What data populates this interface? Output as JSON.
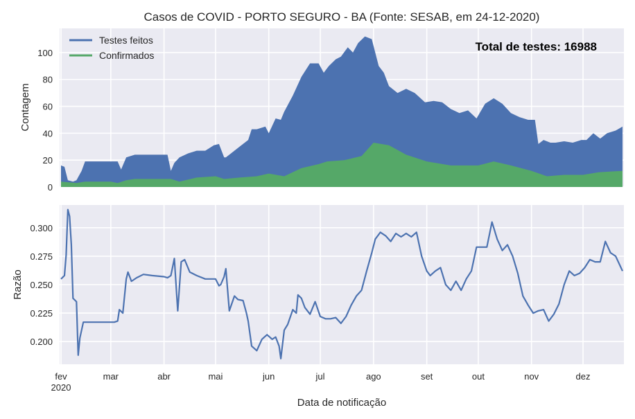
{
  "title": "Casos de COVID - PORTO SEGURO - BA (Fonte: SESAB, em 24-12-2020)",
  "annotation": "Total de testes: 16988",
  "colors": {
    "tests": "#4c72b0",
    "confirmed": "#55a868",
    "ratio": "#4c72b0",
    "background": "#eaeaf2"
  },
  "chart_data": [
    {
      "type": "area",
      "ylabel": "Contagem",
      "ylim": [
        0,
        118
      ],
      "yticks": [
        "0",
        "20",
        "40",
        "60",
        "80",
        "100"
      ],
      "ytick_values": [
        0,
        20,
        40,
        60,
        80,
        100
      ],
      "legend_position": "top-left",
      "series": [
        {
          "name": "Testes feitos",
          "x": [
            "2020-02-01",
            "2020-02-03",
            "2020-02-05",
            "2020-02-08",
            "2020-02-10",
            "2020-02-13",
            "2020-02-15",
            "2020-02-20",
            "2020-02-25",
            "2020-03-01",
            "2020-03-05",
            "2020-03-07",
            "2020-03-10",
            "2020-03-15",
            "2020-03-20",
            "2020-03-25",
            "2020-03-30",
            "2020-04-03",
            "2020-04-05",
            "2020-04-07",
            "2020-04-10",
            "2020-04-15",
            "2020-04-20",
            "2020-04-25",
            "2020-04-30",
            "2020-05-03",
            "2020-05-06",
            "2020-05-07",
            "2020-05-10",
            "2020-05-15",
            "2020-05-20",
            "2020-05-22",
            "2020-05-25",
            "2020-05-30",
            "2020-06-01",
            "2020-06-05",
            "2020-06-08",
            "2020-06-10",
            "2020-06-15",
            "2020-06-20",
            "2020-06-25",
            "2020-06-30",
            "2020-07-03",
            "2020-07-06",
            "2020-07-10",
            "2020-07-13",
            "2020-07-17",
            "2020-07-20",
            "2020-07-23",
            "2020-07-27",
            "2020-07-31",
            "2020-08-04",
            "2020-08-07",
            "2020-08-10",
            "2020-08-15",
            "2020-08-20",
            "2020-08-25",
            "2020-08-31",
            "2020-09-05",
            "2020-09-10",
            "2020-09-15",
            "2020-09-20",
            "2020-09-25",
            "2020-09-30",
            "2020-10-05",
            "2020-10-10",
            "2020-10-15",
            "2020-10-20",
            "2020-10-25",
            "2020-10-30",
            "2020-11-03",
            "2020-11-05",
            "2020-11-08",
            "2020-11-12",
            "2020-11-15",
            "2020-11-20",
            "2020-11-25",
            "2020-11-30",
            "2020-12-03",
            "2020-12-07",
            "2020-12-11",
            "2020-12-15",
            "2020-12-20",
            "2020-12-24"
          ],
          "values": [
            16,
            15,
            5,
            4,
            5,
            12,
            19,
            19,
            19,
            19,
            19,
            13,
            22,
            24,
            24,
            24,
            24,
            24,
            12,
            18,
            22,
            25,
            27,
            27,
            31,
            32,
            22,
            22,
            25,
            30,
            35,
            43,
            43,
            45,
            40,
            51,
            50,
            56,
            68,
            82,
            92,
            92,
            85,
            90,
            95,
            97,
            104,
            100,
            107,
            112,
            110,
            90,
            85,
            75,
            70,
            73,
            70,
            63,
            64,
            63,
            58,
            55,
            57,
            51,
            62,
            66,
            62,
            55,
            52,
            50,
            50,
            32,
            35,
            33,
            33,
            34,
            33,
            35,
            35,
            40,
            36,
            40,
            42,
            45
          ]
        },
        {
          "name": "Confirmados",
          "x": [
            "2020-02-01",
            "2020-02-10",
            "2020-02-15",
            "2020-03-01",
            "2020-03-05",
            "2020-03-10",
            "2020-03-15",
            "2020-04-05",
            "2020-04-10",
            "2020-04-20",
            "2020-05-01",
            "2020-05-06",
            "2020-05-15",
            "2020-05-25",
            "2020-06-01",
            "2020-06-10",
            "2020-06-20",
            "2020-06-30",
            "2020-07-05",
            "2020-07-15",
            "2020-07-25",
            "2020-08-01",
            "2020-08-10",
            "2020-08-20",
            "2020-09-01",
            "2020-09-15",
            "2020-10-01",
            "2020-10-10",
            "2020-10-20",
            "2020-11-01",
            "2020-11-10",
            "2020-11-20",
            "2020-12-01",
            "2020-12-10",
            "2020-12-24"
          ],
          "values": [
            4,
            3,
            4,
            4,
            3,
            5,
            6,
            6,
            4,
            7,
            8,
            6,
            7,
            8,
            10,
            8,
            14,
            17,
            19,
            20,
            23,
            33,
            31,
            24,
            19,
            16,
            16,
            19,
            16,
            12,
            8,
            9,
            9,
            11,
            12
          ]
        }
      ]
    },
    {
      "type": "line",
      "ylabel": "Razão",
      "xlabel": "Data de notificação",
      "ylim": [
        0.18,
        0.32
      ],
      "yticks": [
        "0.200",
        "0.225",
        "0.250",
        "0.275",
        "0.300"
      ],
      "ytick_values": [
        0.2,
        0.225,
        0.25,
        0.275,
        0.3
      ],
      "x_tick_labels": [
        "fev\n2020",
        "mar",
        "abr",
        "mai",
        "jun",
        "jul",
        "ago",
        "set",
        "out",
        "nov",
        "dez"
      ],
      "x_tick_dates": [
        "2020-02-01",
        "2020-03-01",
        "2020-04-01",
        "2020-05-01",
        "2020-06-01",
        "2020-07-01",
        "2020-08-01",
        "2020-09-01",
        "2020-10-01",
        "2020-11-01",
        "2020-12-01"
      ],
      "x_range": [
        "2020-02-01",
        "2020-12-24"
      ],
      "series": [
        {
          "x": [
            "2020-02-01",
            "2020-02-03",
            "2020-02-04",
            "2020-02-05",
            "2020-02-06",
            "2020-02-07",
            "2020-02-08",
            "2020-02-10",
            "2020-02-11",
            "2020-02-12",
            "2020-02-14",
            "2020-02-20",
            "2020-02-28",
            "2020-03-03",
            "2020-03-05",
            "2020-03-06",
            "2020-03-08",
            "2020-03-10",
            "2020-03-11",
            "2020-03-13",
            "2020-03-16",
            "2020-03-20",
            "2020-03-25",
            "2020-04-01",
            "2020-04-03",
            "2020-04-05",
            "2020-04-07",
            "2020-04-09",
            "2020-04-11",
            "2020-04-13",
            "2020-04-16",
            "2020-04-20",
            "2020-04-25",
            "2020-05-01",
            "2020-05-03",
            "2020-05-04",
            "2020-05-06",
            "2020-05-07",
            "2020-05-09",
            "2020-05-12",
            "2020-05-14",
            "2020-05-17",
            "2020-05-19",
            "2020-05-20",
            "2020-05-22",
            "2020-05-25",
            "2020-05-28",
            "2020-05-31",
            "2020-06-03",
            "2020-06-05",
            "2020-06-07",
            "2020-06-08",
            "2020-06-10",
            "2020-06-12",
            "2020-06-15",
            "2020-06-17",
            "2020-06-18",
            "2020-06-20",
            "2020-06-22",
            "2020-06-25",
            "2020-06-28",
            "2020-07-01",
            "2020-07-04",
            "2020-07-07",
            "2020-07-10",
            "2020-07-13",
            "2020-07-16",
            "2020-07-19",
            "2020-07-22",
            "2020-07-25",
            "2020-07-28",
            "2020-07-31",
            "2020-08-02",
            "2020-08-05",
            "2020-08-08",
            "2020-08-11",
            "2020-08-14",
            "2020-08-17",
            "2020-08-20",
            "2020-08-23",
            "2020-08-26",
            "2020-08-29",
            "2020-09-01",
            "2020-09-03",
            "2020-09-06",
            "2020-09-09",
            "2020-09-12",
            "2020-09-15",
            "2020-09-18",
            "2020-09-21",
            "2020-09-24",
            "2020-09-27",
            "2020-09-30",
            "2020-10-03",
            "2020-10-06",
            "2020-10-09",
            "2020-10-12",
            "2020-10-15",
            "2020-10-18",
            "2020-10-21",
            "2020-10-24",
            "2020-10-27",
            "2020-10-30",
            "2020-11-02",
            "2020-11-05",
            "2020-11-08",
            "2020-11-11",
            "2020-11-14",
            "2020-11-17",
            "2020-11-20",
            "2020-11-23",
            "2020-11-26",
            "2020-11-29",
            "2020-12-02",
            "2020-12-05",
            "2020-12-08",
            "2020-12-11",
            "2020-12-14",
            "2020-12-17",
            "2020-12-20",
            "2020-12-24"
          ],
          "y": [
            0.255,
            0.258,
            0.276,
            0.316,
            0.31,
            0.285,
            0.238,
            0.235,
            0.188,
            0.203,
            0.217,
            0.217,
            0.217,
            0.217,
            0.218,
            0.228,
            0.225,
            0.255,
            0.261,
            0.253,
            0.256,
            0.259,
            0.258,
            0.257,
            0.256,
            0.258,
            0.273,
            0.227,
            0.27,
            0.272,
            0.261,
            0.258,
            0.255,
            0.255,
            0.249,
            0.25,
            0.257,
            0.264,
            0.227,
            0.24,
            0.237,
            0.236,
            0.225,
            0.218,
            0.196,
            0.192,
            0.202,
            0.206,
            0.202,
            0.204,
            0.196,
            0.185,
            0.21,
            0.215,
            0.228,
            0.225,
            0.241,
            0.238,
            0.23,
            0.224,
            0.235,
            0.222,
            0.22,
            0.22,
            0.221,
            0.216,
            0.222,
            0.232,
            0.24,
            0.245,
            0.262,
            0.278,
            0.29,
            0.296,
            0.293,
            0.288,
            0.295,
            0.292,
            0.295,
            0.292,
            0.296,
            0.275,
            0.262,
            0.258,
            0.262,
            0.265,
            0.25,
            0.245,
            0.253,
            0.245,
            0.255,
            0.262,
            0.283,
            0.283,
            0.283,
            0.305,
            0.29,
            0.28,
            0.285,
            0.275,
            0.26,
            0.24,
            0.232,
            0.225,
            0.227,
            0.228,
            0.218,
            0.224,
            0.233,
            0.25,
            0.262,
            0.258,
            0.26,
            0.265,
            0.272,
            0.27,
            0.27,
            0.288,
            0.278,
            0.275,
            0.262
          ]
        }
      ]
    }
  ]
}
